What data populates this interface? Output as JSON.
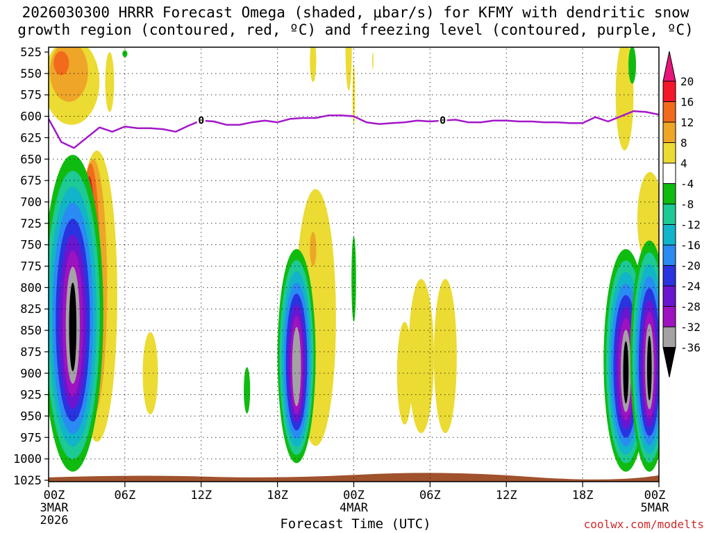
{
  "title_line1": "2026030300 HRRR Forecast Omega (shaded, μbar/s) for KFMY with dendritic snow",
  "title_line2": "growth region (contoured, red, ºC) and freezing level (contoured, purple, ºC)",
  "credit": "coolwx.com/modelts",
  "chart_data": {
    "type": "heatmap",
    "title": "2026030300 HRRR Forecast Omega (shaded, μbar/s) for KFMY with dendritic snow growth region (contoured, red, ºC) and freezing level (contoured, purple, ºC)",
    "xlabel": "Forecast Time (UTC)",
    "ylabel": "Pressure (hPa)",
    "x_range_hours": [
      0,
      48
    ],
    "y_range_hpa": [
      525,
      1025
    ],
    "y_inverted": true,
    "y_ticks": [
      525,
      550,
      575,
      600,
      625,
      650,
      675,
      700,
      725,
      750,
      775,
      800,
      825,
      850,
      875,
      900,
      925,
      950,
      975,
      1000,
      1025
    ],
    "x_ticks": [
      {
        "hour": 0,
        "label": "00Z",
        "date": "3MAR",
        "year": "2026"
      },
      {
        "hour": 6,
        "label": "06Z"
      },
      {
        "hour": 12,
        "label": "12Z"
      },
      {
        "hour": 18,
        "label": "18Z"
      },
      {
        "hour": 24,
        "label": "00Z",
        "date": "4MAR"
      },
      {
        "hour": 30,
        "label": "06Z"
      },
      {
        "hour": 36,
        "label": "12Z"
      },
      {
        "hour": 42,
        "label": "18Z"
      },
      {
        "hour": 48,
        "label": "00Z",
        "date": "5MAR"
      }
    ],
    "colorbar": {
      "bins": [
        {
          "from": 20,
          "to": null,
          "color": "#e8157a"
        },
        {
          "from": 16,
          "to": 20,
          "color": "#f5162b"
        },
        {
          "from": 12,
          "to": 16,
          "color": "#f26a1c"
        },
        {
          "from": 8,
          "to": 12,
          "color": "#eea528"
        },
        {
          "from": 4,
          "to": 8,
          "color": "#ebdb33"
        },
        {
          "from": -4,
          "to": 4,
          "color": "#ffffff"
        },
        {
          "from": -8,
          "to": -4,
          "color": "#10bb10"
        },
        {
          "from": -12,
          "to": -8,
          "color": "#1dc995"
        },
        {
          "from": -16,
          "to": -12,
          "color": "#12b4c9"
        },
        {
          "from": -20,
          "to": -16,
          "color": "#2a8bf2"
        },
        {
          "from": -24,
          "to": -20,
          "color": "#2a33e0"
        },
        {
          "from": -28,
          "to": -24,
          "color": "#6a16d0"
        },
        {
          "from": -32,
          "to": -28,
          "color": "#9f12c0"
        },
        {
          "from": -36,
          "to": -32,
          "color": "#a3a3a3"
        },
        {
          "from": null,
          "to": -36,
          "color": "#000000"
        }
      ],
      "labels": [
        "20",
        "16",
        "12",
        "8",
        "4",
        "-4",
        "-8",
        "-12",
        "-16",
        "-20",
        "-24",
        "-28",
        "-32",
        "-36"
      ]
    },
    "freezing_level": {
      "label": "0",
      "color": "#a317c8",
      "hours": [
        0,
        1,
        2,
        3,
        4,
        5,
        6,
        7,
        8,
        9,
        10,
        11,
        12,
        13,
        14,
        15,
        16,
        17,
        18,
        19,
        20,
        21,
        22,
        23,
        24,
        25,
        26,
        27,
        28,
        29,
        30,
        31,
        32,
        33,
        34,
        35,
        36,
        37,
        38,
        39,
        40,
        41,
        42,
        43,
        44,
        45,
        46,
        47,
        48
      ],
      "pressure_hpa": [
        603,
        630,
        637,
        625,
        613,
        618,
        612,
        614,
        614,
        615,
        618,
        611,
        605,
        606,
        610,
        610,
        607,
        605,
        607,
        603,
        602,
        602,
        599,
        599,
        600,
        607,
        609,
        608,
        607,
        605,
        606,
        605,
        604,
        607,
        607,
        605,
        605,
        606,
        606,
        607,
        607,
        608,
        608,
        601,
        606,
        600,
        594,
        595,
        598
      ]
    },
    "dendritic_region": {
      "present": false
    },
    "omega_features": [
      {
        "hour": 2.0,
        "top_hpa": 640,
        "bottom_hpa": 1008,
        "min_value": "< -36",
        "desc": "strong upward motion, 00Z-03Z 3MAR"
      },
      {
        "hour": 3.2,
        "top_hpa": 640,
        "bottom_hpa": 990,
        "max_value": "> 20",
        "desc": "strong downward motion alongside"
      },
      {
        "hour": 2.0,
        "top_hpa": 525,
        "bottom_hpa": 615,
        "max_value": "12 to 16",
        "desc": "upper-level sinking"
      },
      {
        "hour": 19.3,
        "top_hpa": 752,
        "bottom_hpa": 1000,
        "min_value": "-32 to -36",
        "desc": "upward motion around 18Z-20Z 3MAR"
      },
      {
        "hour": 21.0,
        "top_hpa": 695,
        "bottom_hpa": 985,
        "max_value": "8 to 12",
        "desc": "weak sinking"
      },
      {
        "hour": 45.3,
        "top_hpa": 755,
        "bottom_hpa": 1000,
        "min_value": "< -36",
        "desc": "upward motion 20Z 4MAR - 00Z 5MAR"
      },
      {
        "hour": 47.2,
        "top_hpa": 752,
        "bottom_hpa": 985,
        "min_value": "< -36",
        "desc": "upward motion near end of period"
      }
    ],
    "terrain": {
      "color": "#a0522d",
      "pressure_hpa": 1020
    }
  },
  "xlabel": "Forecast Time (UTC)"
}
